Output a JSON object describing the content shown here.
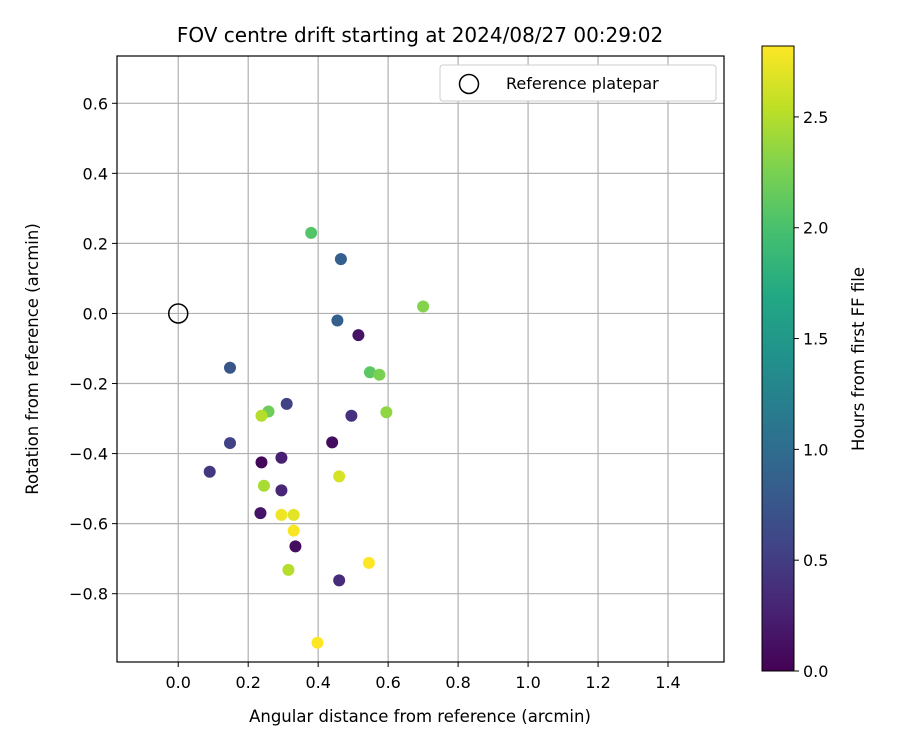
{
  "chart_data": {
    "type": "scatter",
    "title": "FOV centre drift starting at 2024/08/27 00:29:02",
    "xlabel": "Angular distance from reference (arcmin)",
    "ylabel": "Rotation from reference (arcmin)",
    "xlim": [
      -0.175,
      1.56
    ],
    "ylim": [
      -0.995,
      0.735
    ],
    "xticks": [
      0.0,
      0.2,
      0.4,
      0.6,
      0.8,
      1.0,
      1.2,
      1.4
    ],
    "xtick_labels": [
      "0.0",
      "0.2",
      "0.4",
      "0.6",
      "0.8",
      "1.0",
      "1.2",
      "1.4"
    ],
    "yticks": [
      0.6,
      0.4,
      0.2,
      0.0,
      -0.2,
      -0.4,
      -0.6,
      -0.8
    ],
    "ytick_labels": [
      "0.6",
      "0.4",
      "0.2",
      "0.0",
      "−0.2",
      "−0.4",
      "−0.6",
      "−0.8"
    ],
    "grid": true,
    "legend": {
      "placement": "top-right",
      "entries": [
        "Reference platepar"
      ]
    },
    "reference_point": {
      "name": "Reference platepar",
      "x": 0.0,
      "y": 0.0,
      "marker": "hollow-circle"
    },
    "colorbar": {
      "label": "Hours from first FF file",
      "colormap": "viridis",
      "range": [
        0.0,
        2.82
      ],
      "ticks": [
        0.0,
        0.5,
        1.0,
        1.5,
        2.0,
        2.5
      ],
      "tick_labels": [
        "0.0",
        "0.5",
        "1.0",
        "1.5",
        "2.0",
        "2.5"
      ]
    },
    "points": [
      {
        "x": 0.38,
        "y": 0.23,
        "c": 2.05
      },
      {
        "x": 0.465,
        "y": 0.155,
        "c": 0.85
      },
      {
        "x": 0.7,
        "y": 0.02,
        "c": 2.3
      },
      {
        "x": 0.455,
        "y": -0.02,
        "c": 0.85
      },
      {
        "x": 0.515,
        "y": -0.062,
        "c": 0.15
      },
      {
        "x": 0.148,
        "y": -0.155,
        "c": 0.75
      },
      {
        "x": 0.548,
        "y": -0.168,
        "c": 2.1
      },
      {
        "x": 0.575,
        "y": -0.175,
        "c": 2.25
      },
      {
        "x": 0.31,
        "y": -0.258,
        "c": 0.55
      },
      {
        "x": 0.595,
        "y": -0.282,
        "c": 2.35
      },
      {
        "x": 0.258,
        "y": -0.28,
        "c": 2.2
      },
      {
        "x": 0.238,
        "y": -0.292,
        "c": 2.5
      },
      {
        "x": 0.495,
        "y": -0.292,
        "c": 0.4
      },
      {
        "x": 0.148,
        "y": -0.37,
        "c": 0.55
      },
      {
        "x": 0.44,
        "y": -0.368,
        "c": 0.1
      },
      {
        "x": 0.09,
        "y": -0.452,
        "c": 0.45
      },
      {
        "x": 0.238,
        "y": -0.425,
        "c": 0.05
      },
      {
        "x": 0.295,
        "y": -0.412,
        "c": 0.25
      },
      {
        "x": 0.46,
        "y": -0.465,
        "c": 2.65
      },
      {
        "x": 0.245,
        "y": -0.492,
        "c": 2.45
      },
      {
        "x": 0.295,
        "y": -0.505,
        "c": 0.3
      },
      {
        "x": 0.235,
        "y": -0.57,
        "c": 0.15
      },
      {
        "x": 0.295,
        "y": -0.575,
        "c": 2.75
      },
      {
        "x": 0.33,
        "y": -0.575,
        "c": 2.7
      },
      {
        "x": 0.33,
        "y": -0.62,
        "c": 2.8
      },
      {
        "x": 0.335,
        "y": -0.665,
        "c": 0.1
      },
      {
        "x": 0.545,
        "y": -0.712,
        "c": 2.82
      },
      {
        "x": 0.315,
        "y": -0.732,
        "c": 2.5
      },
      {
        "x": 0.46,
        "y": -0.762,
        "c": 0.35
      },
      {
        "x": 0.398,
        "y": -0.94,
        "c": 2.82
      }
    ]
  }
}
